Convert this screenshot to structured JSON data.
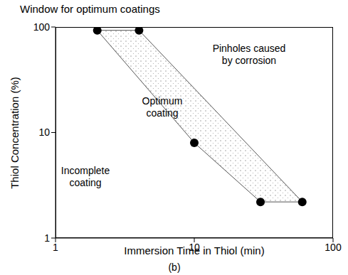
{
  "chart_data": {
    "type": "scatter",
    "title": "Window for optimum coatings",
    "x_label": "Immersion Time in Thiol (min)",
    "y_label": "Thiol Concentration (%)",
    "x": [
      2,
      4,
      10,
      30,
      60
    ],
    "values": [
      93,
      93,
      8,
      2.2,
      2.2
    ],
    "color": "#000000",
    "marker": "circle",
    "xlim": [
      1,
      100
    ],
    "ylim": [
      1,
      100
    ],
    "xticks": [
      1,
      10,
      100
    ],
    "yticks": [
      1,
      10,
      100
    ],
    "log": true,
    "grid": false,
    "annotations": [
      [
        "Pinholes caused",
        "by corrosion"
      ],
      [
        "Optimum",
        "coating"
      ],
      [
        "Incomplete",
        "coating"
      ],
      [
        "(b)"
      ]
    ]
  }
}
